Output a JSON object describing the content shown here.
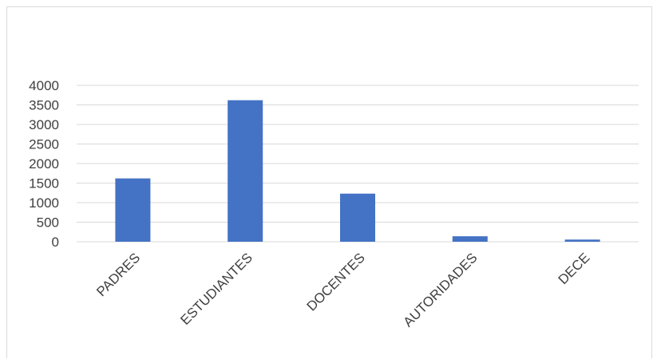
{
  "chart_data": {
    "type": "bar",
    "categories": [
      "PADRES",
      "ESTUDIANTES",
      "DOCENTES",
      "AUTORIDADES",
      "DECE"
    ],
    "values": [
      1620,
      3620,
      1230,
      140,
      55
    ],
    "yticks": [
      "0",
      "500",
      "1000",
      "1500",
      "2000",
      "2500",
      "3000",
      "3500",
      "4000"
    ],
    "ylim": [
      0,
      4000
    ],
    "title": "",
    "xlabel": "",
    "ylabel": "",
    "grid": true,
    "legend": "none",
    "bar_color": "#4472c4",
    "grid_color": "#d9d9d9"
  }
}
